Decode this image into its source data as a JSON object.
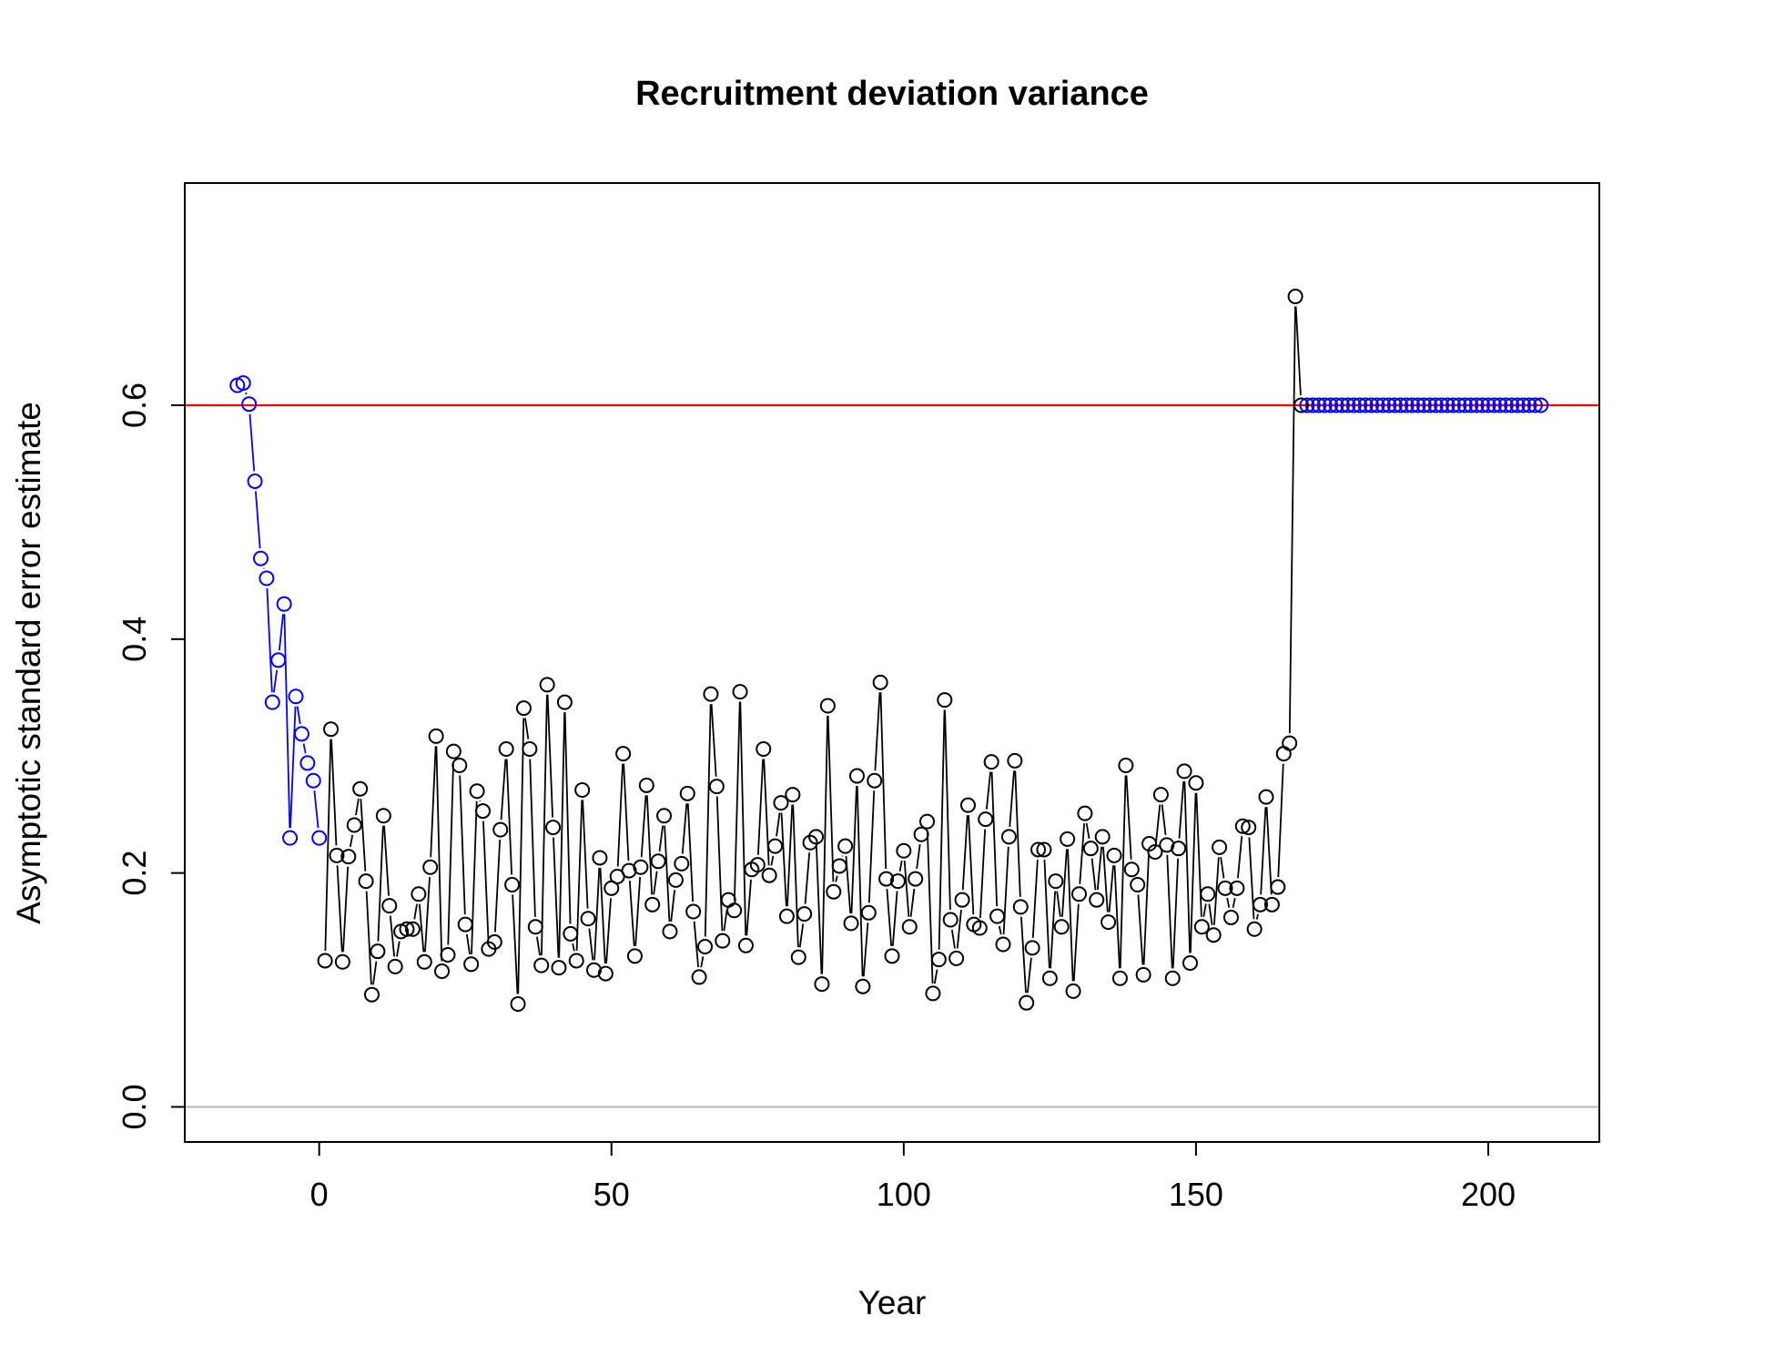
{
  "chart_data": {
    "type": "line",
    "title": "Recruitment deviation variance",
    "xlabel": "Year",
    "ylabel": "Asymptotic standard error estimate",
    "xlim": [
      -23,
      219
    ],
    "ylim": [
      -0.03,
      0.79
    ],
    "xticks": [
      0,
      50,
      100,
      150,
      200
    ],
    "yticks": [
      0.0,
      0.2,
      0.4,
      0.6
    ],
    "xtick_labels": [
      "0",
      "50",
      "100",
      "150",
      "200"
    ],
    "ytick_labels": [
      "0.0",
      "0.2",
      "0.4",
      "0.6"
    ],
    "grid": false,
    "reference_lines": [
      {
        "y": 0.6,
        "color": "#ff0000"
      },
      {
        "y": 0.0,
        "color": "#bebebe"
      }
    ],
    "series": [
      {
        "color": "#0000ff",
        "x": [
          -14,
          -13,
          -12,
          -11,
          -10,
          -9,
          -8,
          -7,
          -6,
          -5,
          -4,
          -3,
          -2,
          -1,
          0
        ],
        "y": [
          0.617,
          0.619,
          0.601,
          0.535,
          0.469,
          0.452,
          0.346,
          0.382,
          0.43,
          0.23,
          0.351,
          0.319,
          0.294,
          0.279,
          0.23
        ]
      },
      {
        "color": "#000000",
        "x": [
          1,
          2,
          3,
          4,
          5,
          6,
          7,
          8,
          9,
          10,
          11,
          12,
          13,
          14,
          15,
          16,
          17,
          18,
          19,
          20,
          21,
          22,
          23,
          24,
          25,
          26,
          27,
          28,
          29,
          30,
          31,
          32,
          33,
          34,
          35,
          36,
          37,
          38,
          39,
          40,
          41,
          42,
          43,
          44,
          45,
          46,
          47,
          48,
          49,
          50,
          51,
          52,
          53,
          54,
          55,
          56,
          57,
          58,
          59,
          60,
          61,
          62,
          63,
          64,
          65,
          66,
          67,
          68,
          69,
          70,
          71,
          72,
          73,
          74,
          75,
          76,
          77,
          78,
          79,
          80,
          81,
          82,
          83,
          84,
          85,
          86,
          87,
          88,
          89,
          90,
          91,
          92,
          93,
          94,
          95,
          96,
          97,
          98,
          99,
          100,
          101,
          102,
          103,
          104,
          105,
          106,
          107,
          108,
          109,
          110,
          111,
          112,
          113,
          114,
          115,
          116,
          117,
          118,
          119,
          120,
          121,
          122,
          123,
          124,
          125,
          126,
          127,
          128,
          129,
          130,
          131,
          132,
          133,
          134,
          135,
          136,
          137,
          138,
          139,
          140,
          141,
          142,
          143,
          144,
          145,
          146,
          147,
          148,
          149,
          150,
          151,
          152,
          153,
          154,
          155,
          156,
          157,
          158,
          159,
          160,
          161,
          162,
          163,
          164,
          165,
          166,
          167,
          168
        ],
        "y": [
          0.125,
          0.323,
          0.215,
          0.124,
          0.214,
          0.241,
          0.272,
          0.193,
          0.096,
          0.133,
          0.249,
          0.172,
          0.12,
          0.15,
          0.152,
          0.152,
          0.182,
          0.124,
          0.205,
          0.317,
          0.116,
          0.13,
          0.304,
          0.292,
          0.156,
          0.122,
          0.27,
          0.253,
          0.135,
          0.141,
          0.237,
          0.306,
          0.19,
          0.088,
          0.341,
          0.306,
          0.154,
          0.121,
          0.361,
          0.239,
          0.119,
          0.346,
          0.148,
          0.125,
          0.271,
          0.161,
          0.117,
          0.213,
          0.114,
          0.187,
          0.197,
          0.302,
          0.202,
          0.129,
          0.205,
          0.275,
          0.173,
          0.21,
          0.249,
          0.15,
          0.194,
          0.208,
          0.268,
          0.167,
          0.111,
          0.137,
          0.353,
          0.274,
          0.142,
          0.177,
          0.168,
          0.355,
          0.138,
          0.203,
          0.207,
          0.306,
          0.198,
          0.223,
          0.26,
          0.163,
          0.267,
          0.128,
          0.165,
          0.226,
          0.231,
          0.105,
          0.343,
          0.184,
          0.206,
          0.223,
          0.157,
          0.283,
          0.103,
          0.166,
          0.279,
          0.363,
          0.195,
          0.129,
          0.193,
          0.219,
          0.154,
          0.195,
          0.233,
          0.244,
          0.097,
          0.126,
          0.348,
          0.16,
          0.127,
          0.177,
          0.258,
          0.156,
          0.153,
          0.246,
          0.295,
          0.163,
          0.139,
          0.231,
          0.296,
          0.171,
          0.089,
          0.136,
          0.22,
          0.22,
          0.11,
          0.193,
          0.154,
          0.229,
          0.099,
          0.182,
          0.251,
          0.221,
          0.177,
          0.231,
          0.158,
          0.215,
          0.11,
          0.292,
          0.203,
          0.19,
          0.113,
          0.225,
          0.218,
          0.267,
          0.224,
          0.11,
          0.221,
          0.287,
          0.123,
          0.277,
          0.154,
          0.182,
          0.147,
          0.222,
          0.187,
          0.162,
          0.187,
          0.24,
          0.239,
          0.152,
          0.173,
          0.265,
          0.173,
          0.188,
          0.302,
          0.311,
          0.693,
          0.6
        ]
      },
      {
        "color": "#0000ff",
        "x": [
          169,
          170,
          171,
          172,
          173,
          174,
          175,
          176,
          177,
          178,
          179,
          180,
          181,
          182,
          183,
          184,
          185,
          186,
          187,
          188,
          189,
          190,
          191,
          192,
          193,
          194,
          195,
          196,
          197,
          198,
          199,
          200,
          201,
          202,
          203,
          204,
          205,
          206,
          207,
          208,
          209
        ],
        "y": [
          0.6,
          0.6,
          0.6,
          0.6,
          0.6,
          0.6,
          0.6,
          0.6,
          0.6,
          0.6,
          0.6,
          0.6,
          0.6,
          0.6,
          0.6,
          0.6,
          0.6,
          0.6,
          0.6,
          0.6,
          0.6,
          0.6,
          0.6,
          0.6,
          0.6,
          0.6,
          0.6,
          0.6,
          0.6,
          0.6,
          0.6,
          0.6,
          0.6,
          0.6,
          0.6,
          0.6,
          0.6,
          0.6,
          0.6,
          0.6,
          0.6
        ]
      }
    ]
  }
}
